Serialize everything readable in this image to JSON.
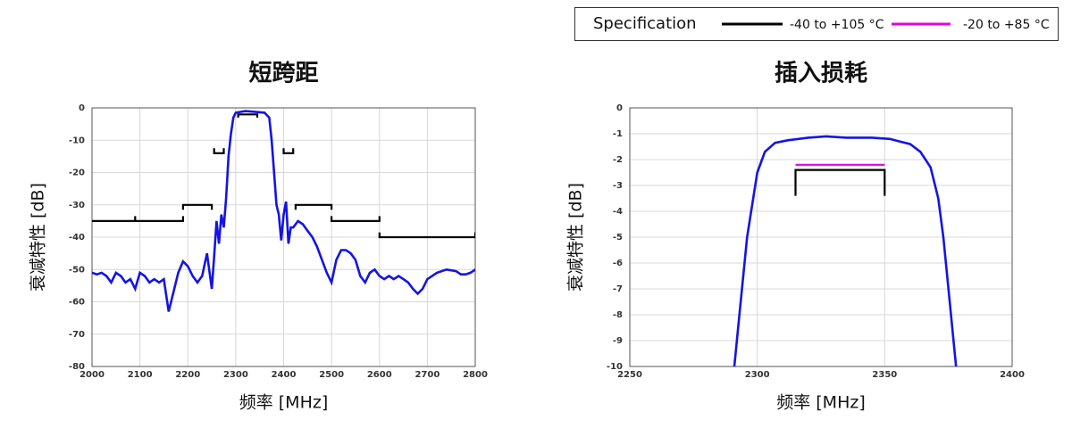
{
  "legend": {
    "title": "Specification",
    "items": [
      {
        "label": "-40 to +105 °C",
        "color": "#000000"
      },
      {
        "label": "-20 to +85 °C",
        "color": "#e400e4"
      }
    ]
  },
  "chart_data": [
    {
      "type": "line",
      "title": "短跨距",
      "x_label": "频率 [MHz]",
      "y_label": "衰减特性 [dB]",
      "xlim": [
        2000,
        2800
      ],
      "xticks": [
        2000,
        2100,
        2200,
        2300,
        2400,
        2500,
        2600,
        2700,
        2800
      ],
      "ylim": [
        -80,
        0
      ],
      "yticks": [
        0,
        -10,
        -20,
        -30,
        -40,
        -50,
        -60,
        -70,
        -80
      ],
      "grid": true,
      "series": [
        {
          "color": "#1414e6",
          "x": [
            2000,
            2010,
            2020,
            2030,
            2040,
            2050,
            2060,
            2070,
            2080,
            2090,
            2100,
            2110,
            2120,
            2130,
            2140,
            2150,
            2160,
            2170,
            2180,
            2190,
            2200,
            2210,
            2220,
            2230,
            2240,
            2250,
            2255,
            2260,
            2265,
            2270,
            2275,
            2280,
            2285,
            2290,
            2295,
            2300,
            2320,
            2340,
            2360,
            2370,
            2375,
            2380,
            2385,
            2390,
            2395,
            2400,
            2405,
            2410,
            2415,
            2420,
            2430,
            2440,
            2450,
            2460,
            2470,
            2480,
            2490,
            2500,
            2510,
            2520,
            2530,
            2540,
            2550,
            2560,
            2570,
            2580,
            2590,
            2600,
            2610,
            2620,
            2630,
            2640,
            2650,
            2660,
            2670,
            2680,
            2690,
            2700,
            2720,
            2740,
            2760,
            2770,
            2780,
            2790,
            2800
          ],
          "values": [
            -51,
            -51.5,
            -51,
            -52,
            -54,
            -51,
            -52,
            -54,
            -53,
            -56,
            -51,
            -52,
            -54,
            -53,
            -54,
            -53,
            -63,
            -57,
            -51,
            -47.5,
            -49,
            -52,
            -54,
            -52,
            -45,
            -56,
            -46,
            -35,
            -42,
            -33,
            -37,
            -28,
            -15,
            -8,
            -3,
            -1.5,
            -1,
            -1.2,
            -1.5,
            -3,
            -10,
            -20,
            -30,
            -33,
            -41,
            -33,
            -29,
            -42,
            -37,
            -37,
            -35,
            -36,
            -38,
            -40,
            -43,
            -47,
            -51,
            -54,
            -47,
            -44,
            -44,
            -45,
            -47,
            -52,
            -54,
            -51,
            -50,
            -52,
            -53,
            -52,
            -53,
            -52,
            -53,
            -54,
            -56,
            -57.5,
            -56,
            -53,
            -51,
            -50,
            -50.5,
            -51.5,
            -51.5,
            -51,
            -50
          ]
        },
        {
          "color": "#000000",
          "x": [
            2000,
            2190,
            2190,
            null,
            2090,
            2090,
            null,
            2190,
            2190,
            2250,
            2250,
            null,
            2255,
            2255,
            2275,
            2275,
            null,
            2305,
            2305,
            2345,
            2345,
            null,
            2400,
            2400,
            2420,
            2420,
            null,
            2425,
            2425,
            2500,
            2500,
            null,
            2500,
            2500,
            2600,
            2600,
            null,
            2600,
            2600,
            2800,
            2800
          ],
          "values": [
            -35,
            -35,
            -33.5,
            null,
            -35,
            -33.5,
            null,
            -31.5,
            -30,
            -30,
            -31.5,
            null,
            -12.5,
            -14,
            -14,
            -12.5,
            null,
            -3,
            -2,
            -2,
            -3,
            null,
            -12.5,
            -14,
            -14,
            -12.5,
            null,
            -31.5,
            -30,
            -30,
            -31.5,
            null,
            -33.5,
            -35,
            -35,
            -33.5,
            null,
            -38.5,
            -40,
            -40,
            -38.5
          ]
        }
      ]
    },
    {
      "type": "line",
      "title": "插入损耗",
      "x_label": "频率 [MHz]",
      "y_label": "衰减特性 [dB]",
      "xlim": [
        2250,
        2400
      ],
      "xticks": [
        2250,
        2300,
        2350,
        2400
      ],
      "ylim": [
        -10,
        0
      ],
      "yticks": [
        0,
        -1,
        -2,
        -3,
        -4,
        -5,
        -6,
        -7,
        -8,
        -9,
        -10
      ],
      "grid": true,
      "series": [
        {
          "color": "#1414e6",
          "x": [
            2291,
            2293,
            2296,
            2300,
            2303,
            2307,
            2312,
            2320,
            2327,
            2335,
            2345,
            2352,
            2356,
            2360,
            2364,
            2368,
            2371,
            2373,
            2375,
            2378
          ],
          "values": [
            -10,
            -8,
            -5,
            -2.5,
            -1.7,
            -1.35,
            -1.25,
            -1.15,
            -1.1,
            -1.15,
            -1.15,
            -1.2,
            -1.3,
            -1.4,
            -1.7,
            -2.3,
            -3.5,
            -5,
            -7,
            -10
          ]
        },
        {
          "color": "#000000",
          "x": [
            2315,
            2315,
            2350,
            2350
          ],
          "values": [
            -3.4,
            -2.4,
            -2.4,
            -3.4
          ]
        },
        {
          "color": "#e400e4",
          "x": [
            2315,
            2350
          ],
          "values": [
            -2.2,
            -2.2
          ]
        }
      ]
    }
  ]
}
